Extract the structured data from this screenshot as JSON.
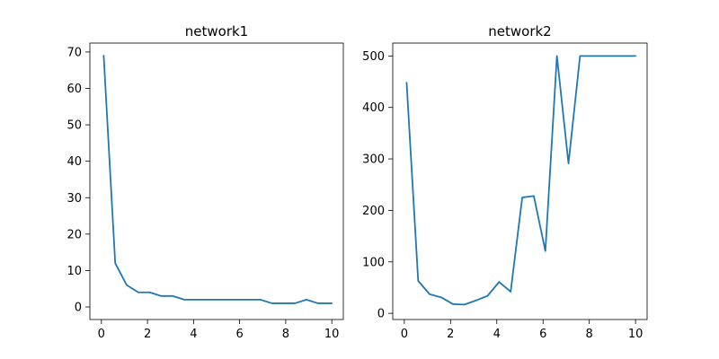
{
  "chart_data": [
    {
      "type": "line",
      "title": "network1",
      "xlabel": "",
      "ylabel": "",
      "xlim": [
        -0.5,
        10.5
      ],
      "ylim": [
        -3.45,
        72.45
      ],
      "xticks": [
        0,
        2,
        4,
        6,
        8,
        10
      ],
      "yticks": [
        0,
        10,
        20,
        30,
        40,
        50,
        60,
        70
      ],
      "grid": false,
      "line_color": "#1f77b4",
      "series": [
        {
          "x": [
            0.1,
            0.6,
            1.1,
            1.6,
            2.1,
            2.6,
            3.1,
            3.6,
            4.1,
            4.6,
            5.1,
            5.6,
            6.1,
            6.6,
            6.9,
            7.4,
            7.9,
            8.4,
            8.9,
            9.4,
            9.9,
            10.0
          ],
          "values": [
            69,
            12,
            6,
            4,
            4,
            3,
            3,
            2,
            2,
            2,
            2,
            2,
            2,
            2,
            2,
            1,
            1,
            1,
            2,
            1,
            1,
            1
          ]
        }
      ]
    },
    {
      "type": "line",
      "title": "network2",
      "xlabel": "",
      "ylabel": "",
      "xlim": [
        -0.5,
        10.5
      ],
      "ylim": [
        -12,
        525
      ],
      "xticks": [
        0,
        2,
        4,
        6,
        8,
        10
      ],
      "yticks": [
        0,
        100,
        200,
        300,
        400,
        500
      ],
      "grid": false,
      "line_color": "#1f77b4",
      "series": [
        {
          "x": [
            0.1,
            0.6,
            1.1,
            1.6,
            2.1,
            2.6,
            3.1,
            3.6,
            4.1,
            4.6,
            5.1,
            5.6,
            6.1,
            6.6,
            7.1,
            7.6,
            8.1,
            8.6,
            9.1,
            9.6,
            10.0
          ],
          "values": [
            448,
            63,
            37,
            31,
            18,
            17,
            25,
            34,
            61,
            42,
            225,
            228,
            121,
            500,
            291,
            500,
            500,
            500,
            500,
            500,
            500
          ]
        }
      ]
    }
  ]
}
